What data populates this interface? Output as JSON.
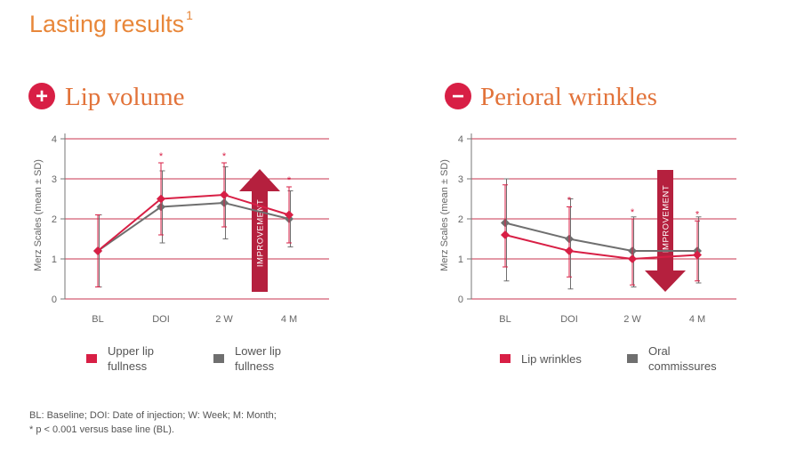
{
  "page": {
    "title": "Lasting results",
    "title_sup": "1",
    "footnote_line1": "BL: Baseline; DOI: Date of injection; W: Week; M: Month;",
    "footnote_line2": "* p < 0.001 versus base line (BL)."
  },
  "colors": {
    "title": "#e8873a",
    "heading": "#e2733a",
    "accent_red": "#d81f45",
    "gray": "#6f6f6f",
    "arrow": "#b5203e",
    "grid": "#c8364f"
  },
  "chart_data": [
    {
      "type": "line",
      "title": "Lip volume",
      "title_symbol": "+",
      "ylabel": "Merz Scales (mean ± SD)",
      "categories": [
        "BL",
        "DOI",
        "2 W",
        "4 M"
      ],
      "ylim": [
        0,
        4
      ],
      "yticks": [
        0,
        1,
        2,
        3,
        4
      ],
      "grid": true,
      "legend_position": "bottom",
      "arrow_label": "IMPROVEMENT",
      "arrow_direction": "up",
      "series": [
        {
          "name": "Upper lip fullness",
          "legend_line1": "Upper lip",
          "legend_line2": "fullness",
          "color": "#d81f45",
          "values": [
            1.2,
            2.5,
            2.6,
            2.1
          ],
          "error_low": [
            0.3,
            1.6,
            1.8,
            1.4
          ],
          "error_high": [
            2.1,
            3.4,
            3.4,
            2.8
          ],
          "significant": [
            false,
            true,
            true,
            true
          ]
        },
        {
          "name": "Lower lip fullness",
          "legend_line1": "Lower lip",
          "legend_line2": "fullness",
          "color": "#6f6f6f",
          "values": [
            1.2,
            2.3,
            2.4,
            2.0
          ],
          "error_low": [
            0.3,
            1.4,
            1.5,
            1.3
          ],
          "error_high": [
            2.1,
            3.2,
            3.3,
            2.7
          ],
          "significant": [
            false,
            false,
            false,
            false
          ]
        }
      ]
    },
    {
      "type": "line",
      "title": "Perioral wrinkles",
      "title_symbol": "−",
      "ylabel": "Merz Scales (mean ± SD)",
      "categories": [
        "BL",
        "DOI",
        "2 W",
        "4 M"
      ],
      "ylim": [
        0,
        4
      ],
      "yticks": [
        0,
        1,
        2,
        3,
        4
      ],
      "grid": true,
      "legend_position": "bottom",
      "arrow_label": "IMPROVEMENT",
      "arrow_direction": "down",
      "series": [
        {
          "name": "Lip wrinkles",
          "legend_line1": "Lip wrinkles",
          "legend_line2": "",
          "color": "#d81f45",
          "values": [
            1.6,
            1.2,
            1.0,
            1.1
          ],
          "error_low": [
            0.8,
            0.55,
            0.35,
            0.45
          ],
          "error_high": [
            2.85,
            2.3,
            2.0,
            1.95
          ],
          "significant": [
            false,
            true,
            true,
            true
          ]
        },
        {
          "name": "Oral commissures",
          "legend_line1": "Oral",
          "legend_line2": "commissures",
          "color": "#6f6f6f",
          "values": [
            1.9,
            1.5,
            1.2,
            1.2
          ],
          "error_low": [
            0.45,
            0.25,
            0.3,
            0.4
          ],
          "error_high": [
            3.0,
            2.5,
            2.05,
            2.05
          ],
          "significant": [
            false,
            false,
            false,
            false
          ]
        }
      ]
    }
  ]
}
